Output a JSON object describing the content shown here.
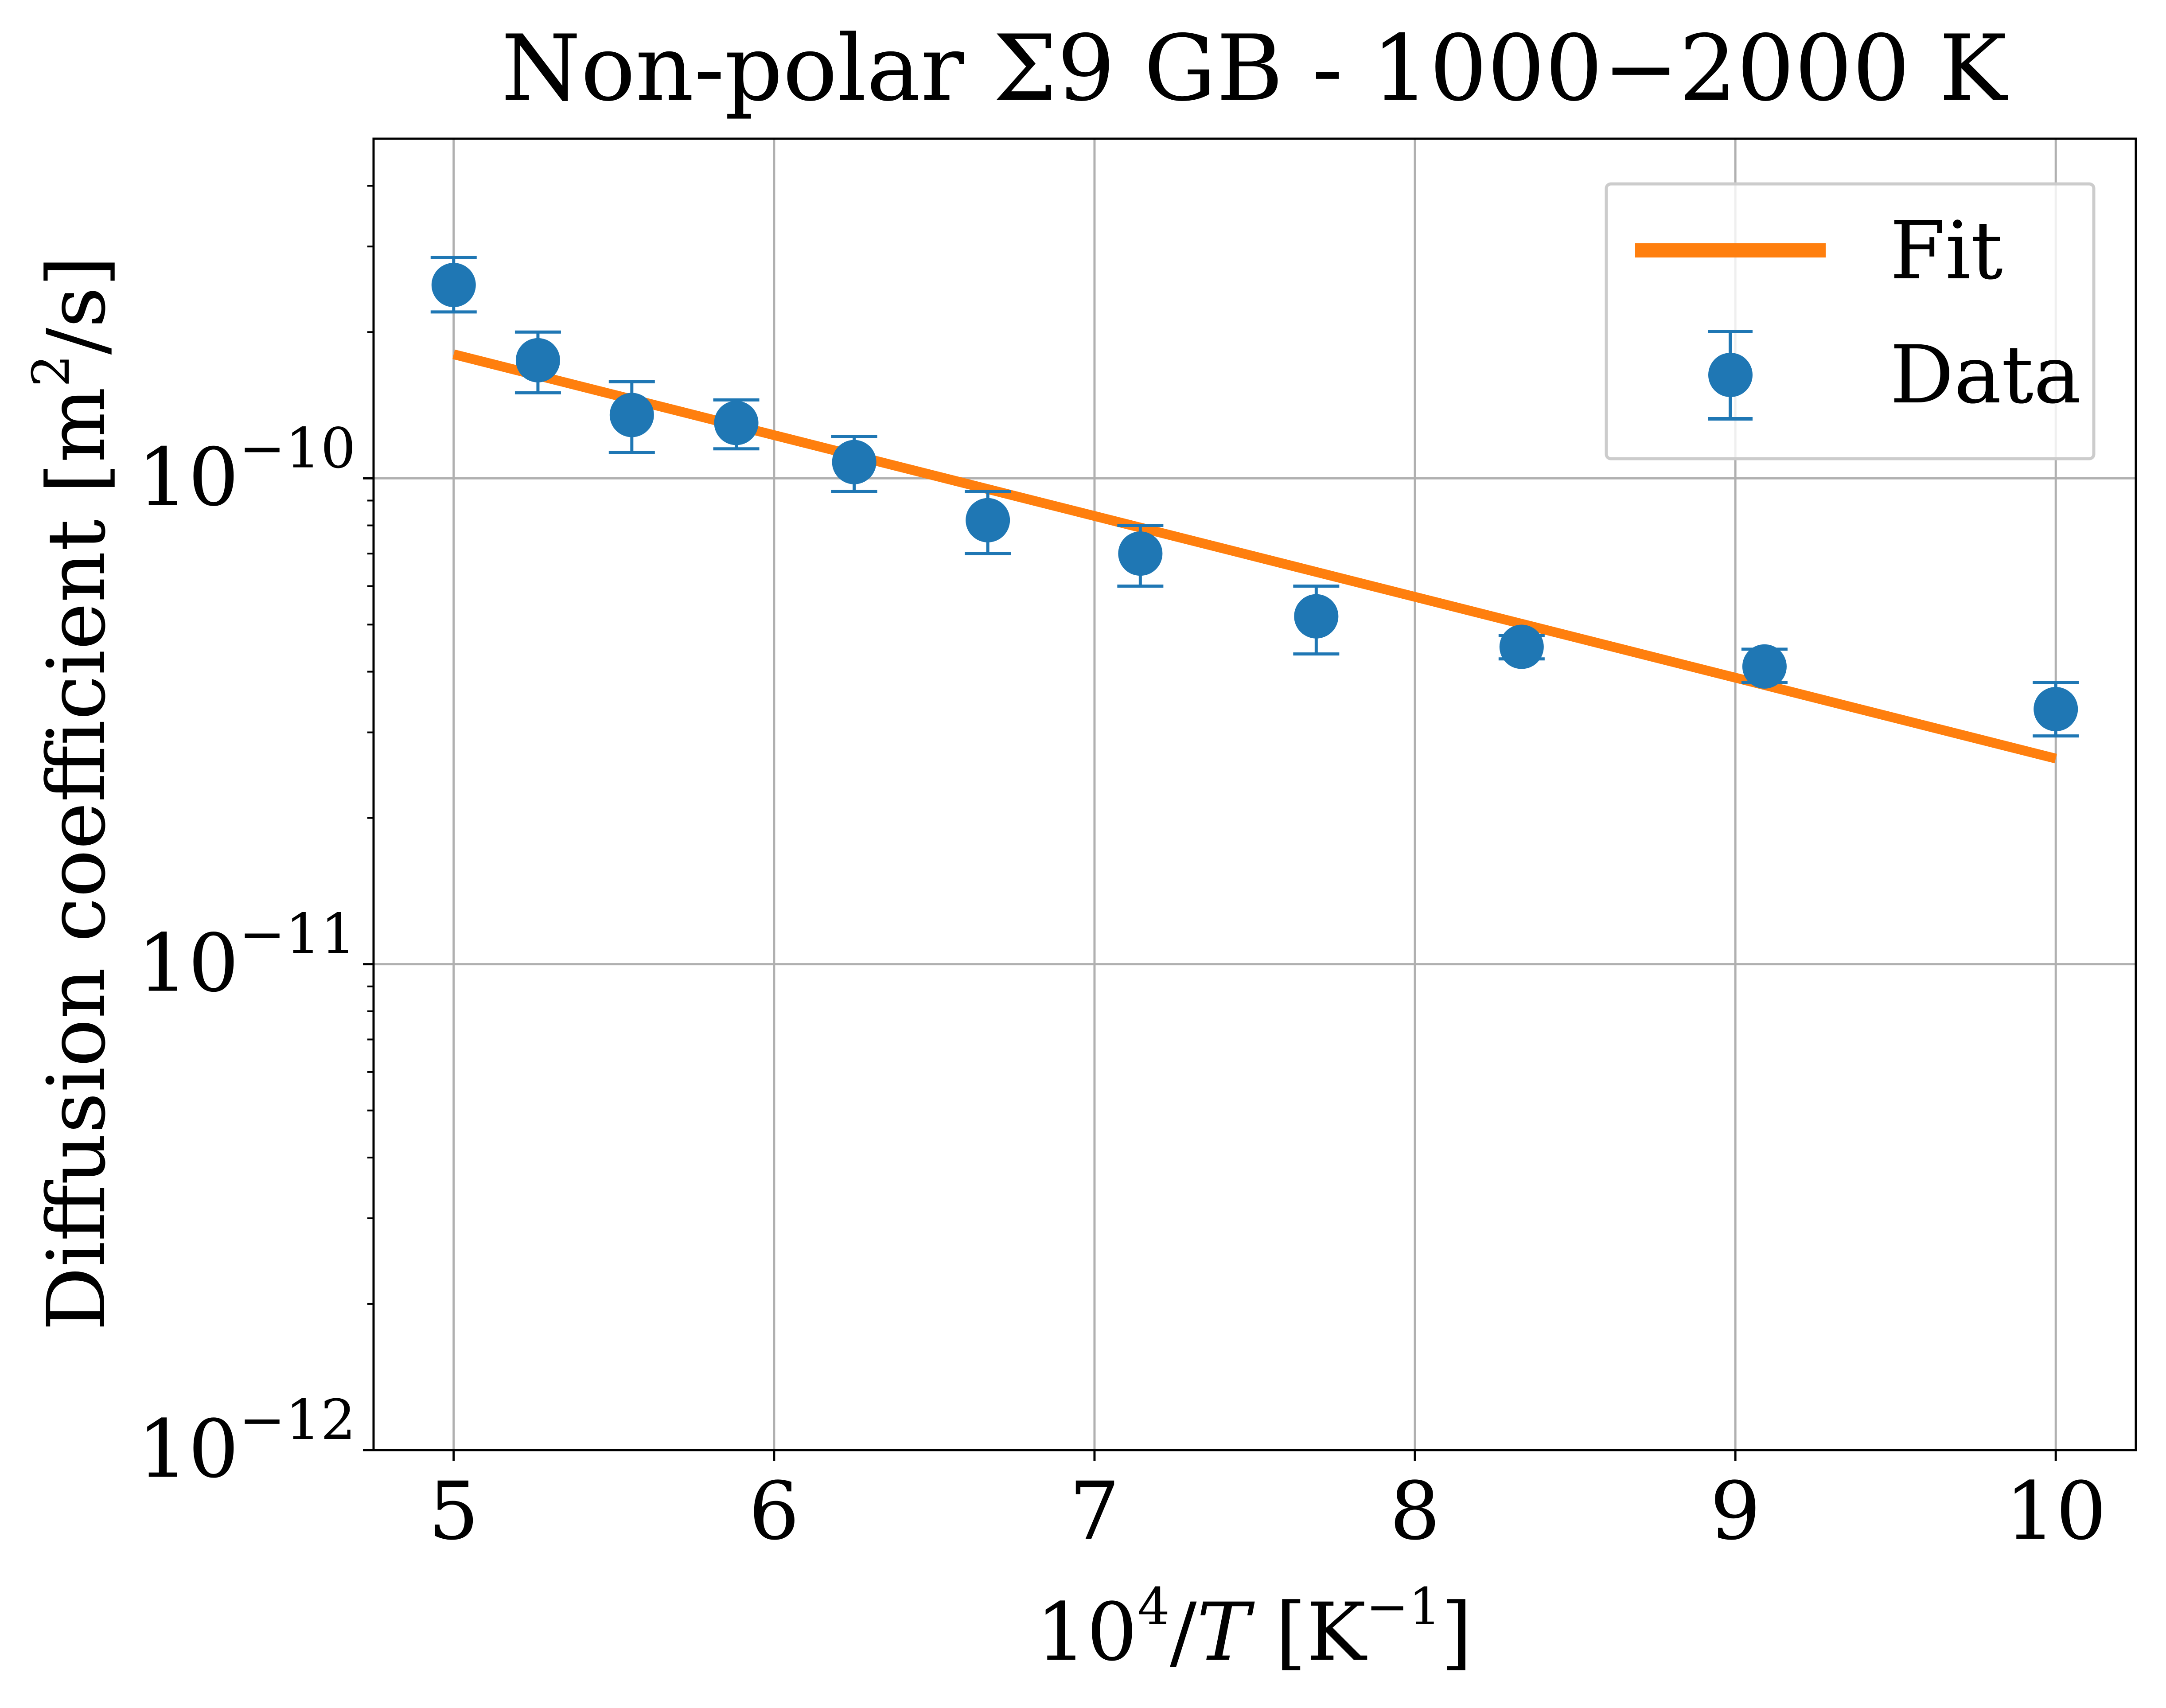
{
  "chart_data": {
    "type": "scatter",
    "title": "Non-polar Σ9 GB - 1000−2000 K",
    "xlabel": {
      "base": "10",
      "base_sup": "4",
      "var": "T",
      "unit_open": " [K",
      "unit_sup": "−1",
      "unit_close": "]"
    },
    "ylabel": {
      "pre": "Diffusion coefficient [m",
      "sup": "2",
      "post": "/s]"
    },
    "xlim": [
      4.75,
      10.25
    ],
    "ylim": [
      1e-12,
      5e-10
    ],
    "yscale": "log",
    "grid": true,
    "legend_position": "top-right",
    "x_ticks": [
      5,
      6,
      7,
      8,
      9,
      10
    ],
    "x_tick_labels": [
      "5",
      "6",
      "7",
      "8",
      "9",
      "10"
    ],
    "y_ticks": [
      {
        "value": 1e-12,
        "base": "10",
        "exp": "−12"
      },
      {
        "value": 1e-11,
        "base": "10",
        "exp": "−11"
      },
      {
        "value": 1e-10,
        "base": "10",
        "exp": "−10"
      }
    ],
    "series": [
      {
        "name": "Fit",
        "kind": "line",
        "color": "#ff7f0e",
        "x": [
          5.0,
          10.0
        ],
        "y": [
          1.8e-10,
          2.65e-11
        ]
      },
      {
        "name": "Data",
        "kind": "errorbar",
        "color": "#1f77b4",
        "x": [
          5.0,
          5.263,
          5.556,
          5.882,
          6.25,
          6.667,
          7.143,
          7.692,
          8.333,
          9.091,
          10.0
        ],
        "y": [
          2.5e-10,
          1.75e-10,
          1.35e-10,
          1.3e-10,
          1.08e-10,
          8.2e-11,
          7e-11,
          5.2e-11,
          4.5e-11,
          4.1e-11,
          3.35e-11
        ],
        "err_low": [
          2.2e-10,
          1.5e-10,
          1.13e-10,
          1.15e-10,
          9.4e-11,
          7e-11,
          6e-11,
          4.35e-11,
          4.25e-11,
          3.8e-11,
          2.95e-11
        ],
        "err_high": [
          2.85e-10,
          2e-10,
          1.58e-10,
          1.45e-10,
          1.22e-10,
          9.4e-11,
          8e-11,
          6e-11,
          4.75e-11,
          4.45e-11,
          3.8e-11
        ]
      }
    ]
  }
}
